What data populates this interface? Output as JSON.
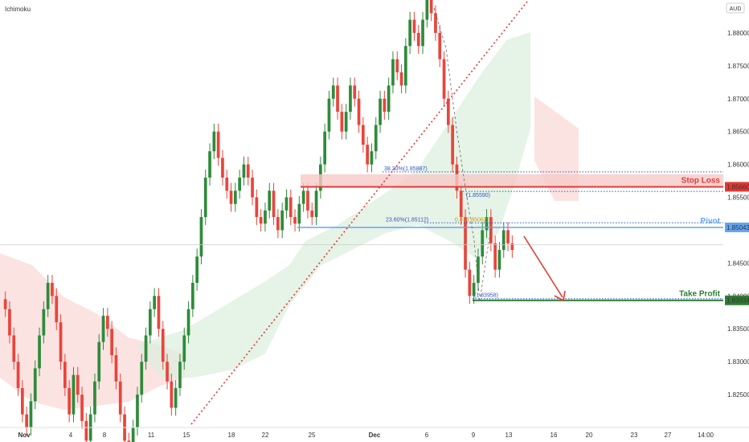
{
  "indicator_label": "Ichimoku",
  "currency_label": "AUD",
  "colors": {
    "up": "#2e8b3a",
    "down": "#e8453c",
    "stop": "#e53935",
    "take": "#2e7d32",
    "pivot": "#64a5f0",
    "cloud_red": "#f8d0cf",
    "cloud_green": "#dbeedd",
    "trend": "#e53935",
    "fib": "#2f57c8"
  },
  "chart_data": {
    "type": "candlestick",
    "symbol_indicator": "Ichimoku",
    "currency": "AUD",
    "ylim": [
      1.82,
      1.885
    ],
    "y_ticks": [
      "1.88000",
      "1.87500",
      "1.87000",
      "1.86500",
      "1.86000",
      "1.85500",
      "1.84500",
      "1.84000",
      "1.83500",
      "1.83000",
      "1.82500"
    ],
    "x_ticks": [
      "Nov",
      "4",
      "8",
      "11",
      "15",
      "18",
      "22",
      "25",
      "Dec",
      "6",
      "9",
      "13",
      "16",
      "20",
      "23",
      "27",
      "14:00"
    ],
    "levels": {
      "stop_loss": {
        "label": "Stop Loss",
        "value": "1.85660"
      },
      "pivot": {
        "label": "Pivot",
        "value": "1.85043"
      },
      "take_profit": {
        "label": "Take Profit",
        "value": "1.83934"
      }
    },
    "fib_labels": {
      "f38": "38.20%(1.85887)",
      "f23": "23.60%(1.85112)",
      "f_high": "(1.85590)",
      "f_low": "(1.83958)",
      "f_mid": "0.8",
      "f_mid2": "(1.85062)"
    },
    "price_path": [
      1.838,
      1.834,
      1.83,
      1.826,
      1.822,
      1.82,
      1.824,
      1.829,
      1.834,
      1.838,
      1.842,
      1.84,
      1.836,
      1.83,
      1.826,
      1.822,
      1.828,
      1.825,
      1.821,
      1.818,
      1.822,
      1.827,
      1.833,
      1.837,
      1.835,
      1.831,
      1.827,
      1.822,
      1.818,
      1.817,
      1.82,
      1.825,
      1.83,
      1.834,
      1.838,
      1.84,
      1.835,
      1.83,
      1.827,
      1.823,
      1.826,
      1.83,
      1.834,
      1.838,
      1.842,
      1.846,
      1.852,
      1.858,
      1.862,
      1.865,
      1.861,
      1.858,
      1.856,
      1.854,
      1.856,
      1.858,
      1.86,
      1.858,
      1.855,
      1.852,
      1.851,
      1.853,
      1.856,
      1.852,
      1.85,
      1.853,
      1.855,
      1.852,
      1.851,
      1.854,
      1.856,
      1.853,
      1.852,
      1.856,
      1.86,
      1.865,
      1.87,
      1.872,
      1.868,
      1.865,
      1.868,
      1.872,
      1.87,
      1.866,
      1.863,
      1.86,
      1.862,
      1.866,
      1.87,
      1.868,
      1.872,
      1.876,
      1.874,
      1.872,
      1.878,
      1.882,
      1.88,
      1.878,
      1.882,
      1.885,
      1.883,
      1.88,
      1.876,
      1.87,
      1.866,
      1.86,
      1.856,
      1.852,
      1.844,
      1.84,
      1.842,
      1.846,
      1.85,
      1.852,
      1.848,
      1.844,
      1.847,
      1.85,
      1.848,
      1.847
    ]
  }
}
